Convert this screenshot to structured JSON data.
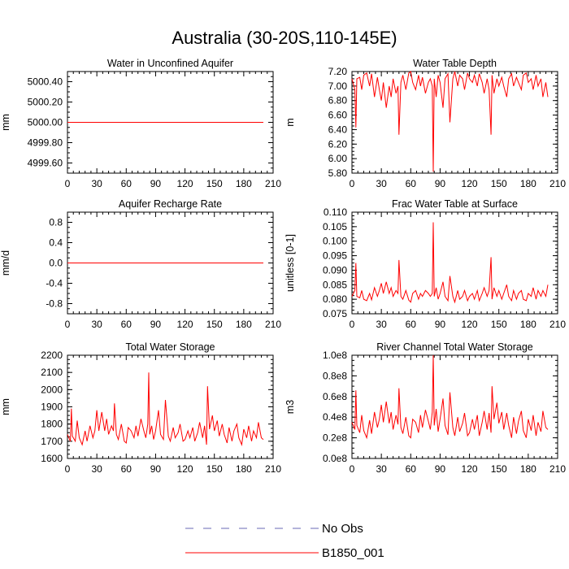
{
  "figure_title": "Australia (30-20S,110-145E)",
  "legend": [
    {
      "label": "No Obs",
      "color": "#6a6ab4",
      "style": "dashed"
    },
    {
      "label": "B1850_001",
      "color": "#ff0000",
      "style": "solid"
    }
  ],
  "chart_data": [
    {
      "type": "line",
      "title": "Water in Unconfined Aquifer",
      "ylabel": "mm",
      "xlim": [
        0,
        210
      ],
      "ylim": [
        4999.5,
        5000.5
      ],
      "xticks": [
        "0",
        "30",
        "60",
        "90",
        "120",
        "150",
        "180",
        "210"
      ],
      "xtick_values": [
        0,
        30,
        60,
        90,
        120,
        150,
        180,
        210
      ],
      "yticks": [
        "4999.60",
        "4999.80",
        "5000.00",
        "5000.20",
        "5000.40"
      ],
      "ytick_values": [
        4999.6,
        4999.8,
        5000.0,
        5000.2,
        5000.4
      ],
      "series": [
        {
          "values": [
            5000.0,
            5000.0
          ],
          "x": [
            0,
            200
          ]
        }
      ]
    },
    {
      "type": "line",
      "title": "Water Table Depth",
      "ylabel": "m",
      "xlim": [
        0,
        210
      ],
      "ylim": [
        5.8,
        7.2
      ],
      "xticks": [
        "0",
        "30",
        "60",
        "90",
        "120",
        "150",
        "180",
        "210"
      ],
      "xtick_values": [
        0,
        30,
        60,
        90,
        120,
        150,
        180,
        210
      ],
      "yticks": [
        "5.80",
        "6.00",
        "6.20",
        "6.40",
        "6.60",
        "6.80",
        "7.00",
        "7.20"
      ],
      "ytick_values": [
        5.8,
        6.0,
        6.2,
        6.4,
        6.6,
        6.8,
        7.0,
        7.2
      ],
      "series": [
        {
          "x": [
            0,
            3,
            4,
            5,
            8,
            10,
            12,
            15,
            18,
            20,
            23,
            26,
            28,
            30,
            32,
            35,
            38,
            40,
            42,
            45,
            47,
            48,
            50,
            52,
            55,
            58,
            60,
            62,
            65,
            68,
            70,
            72,
            75,
            78,
            80,
            82,
            83,
            84,
            86,
            88,
            90,
            93,
            95,
            98,
            100,
            103,
            105,
            108,
            110,
            113,
            115,
            118,
            120,
            123,
            125,
            128,
            130,
            133,
            135,
            138,
            140,
            142,
            143,
            145,
            148,
            150,
            153,
            155,
            158,
            160,
            163,
            165,
            168,
            170,
            173,
            175,
            178,
            180,
            183,
            185,
            188,
            190,
            193,
            195,
            198,
            200
          ],
          "values": [
            7.1,
            6.95,
            6.43,
            7.1,
            7.12,
            6.95,
            7.15,
            7.18,
            7.0,
            7.17,
            6.85,
            7.12,
            6.95,
            6.8,
            7.05,
            6.7,
            7.0,
            6.85,
            7.1,
            6.9,
            7.0,
            6.33,
            7.05,
            7.15,
            6.95,
            7.18,
            7.2,
            7.05,
            6.95,
            7.15,
            7.0,
            7.12,
            6.9,
            7.05,
            7.1,
            7.0,
            5.82,
            7.1,
            6.85,
            7.15,
            7.05,
            6.7,
            7.1,
            7.17,
            6.5,
            7.1,
            7.2,
            7.0,
            7.15,
            7.1,
            6.95,
            7.18,
            7.1,
            7.05,
            7.15,
            7.0,
            7.17,
            7.05,
            6.9,
            7.1,
            6.95,
            6.33,
            7.15,
            6.9,
            7.1,
            7.0,
            7.12,
            7.0,
            6.85,
            7.1,
            7.17,
            7.0,
            7.12,
            7.05,
            6.95,
            7.15,
            7.18,
            7.05,
            7.1,
            6.95,
            7.15,
            7.0,
            7.1,
            6.85,
            7.05,
            6.85
          ]
        }
      ]
    },
    {
      "type": "line",
      "title": "Aquifer Recharge Rate",
      "ylabel": "mm/d",
      "xlim": [
        0,
        210
      ],
      "ylim": [
        -1.0,
        1.0
      ],
      "xticks": [
        "0",
        "30",
        "60",
        "90",
        "120",
        "150",
        "180",
        "210"
      ],
      "xtick_values": [
        0,
        30,
        60,
        90,
        120,
        150,
        180,
        210
      ],
      "yticks": [
        "-0.8",
        "-0.4",
        "0.0",
        "0.4",
        "0.8"
      ],
      "ytick_values": [
        -0.8,
        -0.4,
        0.0,
        0.4,
        0.8
      ],
      "series": [
        {
          "values": [
            0.0,
            0.0
          ],
          "x": [
            0,
            200
          ]
        }
      ]
    },
    {
      "type": "line",
      "title": "Frac Water Table at Surface",
      "ylabel": "unitless [0-1]",
      "xlim": [
        0,
        210
      ],
      "ylim": [
        0.075,
        0.11
      ],
      "xticks": [
        "0",
        "30",
        "60",
        "90",
        "120",
        "150",
        "180",
        "210"
      ],
      "xtick_values": [
        0,
        30,
        60,
        90,
        120,
        150,
        180,
        210
      ],
      "yticks": [
        "0.075",
        "0.080",
        "0.085",
        "0.090",
        "0.095",
        "0.100",
        "0.105",
        "0.110"
      ],
      "ytick_values": [
        0.075,
        0.08,
        0.085,
        0.09,
        0.095,
        0.1,
        0.105,
        0.11
      ],
      "series": [
        {
          "x": [
            0,
            3,
            4,
            5,
            8,
            10,
            12,
            15,
            18,
            20,
            23,
            26,
            28,
            30,
            32,
            35,
            38,
            40,
            42,
            45,
            47,
            48,
            50,
            52,
            55,
            58,
            60,
            62,
            65,
            68,
            70,
            72,
            75,
            78,
            80,
            82,
            83,
            84,
            86,
            88,
            90,
            93,
            95,
            98,
            100,
            103,
            105,
            108,
            110,
            113,
            115,
            118,
            120,
            123,
            125,
            128,
            130,
            133,
            135,
            138,
            140,
            142,
            143,
            145,
            148,
            150,
            153,
            155,
            158,
            160,
            163,
            165,
            168,
            170,
            173,
            175,
            178,
            180,
            183,
            185,
            188,
            190,
            193,
            195,
            198,
            200
          ],
          "values": [
            0.081,
            0.083,
            0.0925,
            0.081,
            0.0805,
            0.083,
            0.08,
            0.0795,
            0.082,
            0.0798,
            0.084,
            0.081,
            0.083,
            0.0855,
            0.082,
            0.086,
            0.082,
            0.084,
            0.081,
            0.083,
            0.082,
            0.0935,
            0.081,
            0.08,
            0.083,
            0.0797,
            0.079,
            0.082,
            0.083,
            0.08,
            0.082,
            0.081,
            0.083,
            0.082,
            0.081,
            0.082,
            0.1065,
            0.081,
            0.084,
            0.08,
            0.082,
            0.086,
            0.081,
            0.0795,
            0.088,
            0.081,
            0.079,
            0.083,
            0.08,
            0.081,
            0.083,
            0.0795,
            0.081,
            0.082,
            0.08,
            0.083,
            0.0795,
            0.082,
            0.084,
            0.081,
            0.083,
            0.0945,
            0.08,
            0.084,
            0.081,
            0.083,
            0.08,
            0.082,
            0.085,
            0.081,
            0.0795,
            0.083,
            0.08,
            0.082,
            0.083,
            0.08,
            0.0795,
            0.082,
            0.081,
            0.084,
            0.08,
            0.083,
            0.081,
            0.083,
            0.081,
            0.085
          ]
        }
      ]
    },
    {
      "type": "line",
      "title": "Total Water Storage",
      "ylabel": "mm",
      "xlim": [
        0,
        210
      ],
      "ylim": [
        1600,
        2200
      ],
      "xticks": [
        "0",
        "30",
        "60",
        "90",
        "120",
        "150",
        "180",
        "210"
      ],
      "xtick_values": [
        0,
        30,
        60,
        90,
        120,
        150,
        180,
        210
      ],
      "yticks": [
        "1600",
        "1700",
        "1800",
        "1900",
        "2000",
        "2100",
        "2200"
      ],
      "ytick_values": [
        1600,
        1700,
        1800,
        1900,
        2000,
        2100,
        2200
      ],
      "series": [
        {
          "x": [
            0,
            3,
            4,
            5,
            8,
            10,
            12,
            15,
            18,
            20,
            23,
            26,
            28,
            30,
            32,
            35,
            38,
            40,
            42,
            45,
            47,
            48,
            50,
            52,
            55,
            58,
            60,
            62,
            65,
            68,
            70,
            72,
            75,
            78,
            80,
            82,
            83,
            84,
            86,
            88,
            90,
            93,
            95,
            98,
            100,
            103,
            105,
            108,
            110,
            113,
            115,
            118,
            120,
            123,
            125,
            128,
            130,
            133,
            135,
            138,
            140,
            142,
            143,
            145,
            148,
            150,
            153,
            155,
            158,
            160,
            163,
            165,
            168,
            170,
            173,
            175,
            178,
            180,
            183,
            185,
            188,
            190,
            193,
            195,
            198,
            200
          ],
          "values": [
            1740,
            1700,
            1890,
            1730,
            1700,
            1820,
            1720,
            1680,
            1760,
            1700,
            1790,
            1720,
            1760,
            1880,
            1760,
            1870,
            1760,
            1830,
            1740,
            1790,
            1760,
            1920,
            1740,
            1710,
            1800,
            1700,
            1690,
            1780,
            1760,
            1720,
            1790,
            1730,
            1830,
            1760,
            1720,
            1800,
            2100,
            1740,
            1790,
            1710,
            1760,
            1880,
            1740,
            1710,
            1940,
            1730,
            1700,
            1780,
            1720,
            1750,
            1800,
            1700,
            1710,
            1760,
            1720,
            1780,
            1700,
            1750,
            1810,
            1720,
            1790,
            1680,
            2020,
            1770,
            1850,
            1760,
            1820,
            1730,
            1800,
            1740,
            1690,
            1780,
            1700,
            1760,
            1800,
            1720,
            1680,
            1770,
            1720,
            1790,
            1700,
            1760,
            1720,
            1810,
            1720,
            1710
          ]
        }
      ]
    },
    {
      "type": "line",
      "title": "River Channel Total Water Storage",
      "ylabel": "m3",
      "xlim": [
        0,
        210
      ],
      "ylim": [
        0,
        100000000
      ],
      "xticks": [
        "0",
        "30",
        "60",
        "90",
        "120",
        "150",
        "180",
        "210"
      ],
      "xtick_values": [
        0,
        30,
        60,
        90,
        120,
        150,
        180,
        210
      ],
      "yticks": [
        "0.0e8",
        "0.2e8",
        "0.4e8",
        "0.6e8",
        "0.8e8",
        "1.0e8"
      ],
      "ytick_values": [
        0,
        20000000,
        40000000,
        60000000,
        80000000,
        100000000
      ],
      "series": [
        {
          "x": [
            0,
            3,
            4,
            5,
            8,
            10,
            12,
            15,
            18,
            20,
            23,
            26,
            28,
            30,
            32,
            35,
            38,
            40,
            42,
            45,
            47,
            48,
            50,
            52,
            55,
            58,
            60,
            62,
            65,
            68,
            70,
            72,
            75,
            78,
            80,
            82,
            83,
            84,
            86,
            88,
            90,
            93,
            95,
            98,
            100,
            103,
            105,
            108,
            110,
            113,
            115,
            118,
            120,
            123,
            125,
            128,
            130,
            133,
            135,
            138,
            140,
            142,
            143,
            145,
            148,
            150,
            153,
            155,
            158,
            160,
            163,
            165,
            168,
            170,
            173,
            175,
            178,
            180,
            183,
            185,
            188,
            190,
            193,
            195,
            198,
            200
          ],
          "values": [
            35000000,
            28000000,
            66000000,
            32000000,
            25000000,
            42000000,
            27000000,
            20000000,
            37000000,
            24000000,
            45000000,
            30000000,
            38000000,
            52000000,
            35000000,
            55000000,
            34000000,
            45000000,
            28000000,
            42000000,
            33000000,
            68000000,
            30000000,
            24000000,
            40000000,
            22000000,
            20000000,
            38000000,
            35000000,
            25000000,
            42000000,
            30000000,
            47000000,
            36000000,
            28000000,
            45000000,
            100000000,
            32000000,
            48000000,
            26000000,
            38000000,
            58000000,
            32000000,
            23000000,
            64000000,
            30000000,
            22000000,
            40000000,
            26000000,
            34000000,
            44000000,
            22000000,
            25000000,
            38000000,
            28000000,
            42000000,
            22000000,
            35000000,
            46000000,
            28000000,
            44000000,
            25000000,
            70000000,
            38000000,
            54000000,
            34000000,
            45000000,
            28000000,
            44000000,
            32000000,
            20000000,
            40000000,
            24000000,
            36000000,
            46000000,
            27000000,
            20000000,
            38000000,
            27000000,
            42000000,
            22000000,
            35000000,
            26000000,
            46000000,
            30000000,
            28000000
          ]
        }
      ]
    }
  ]
}
